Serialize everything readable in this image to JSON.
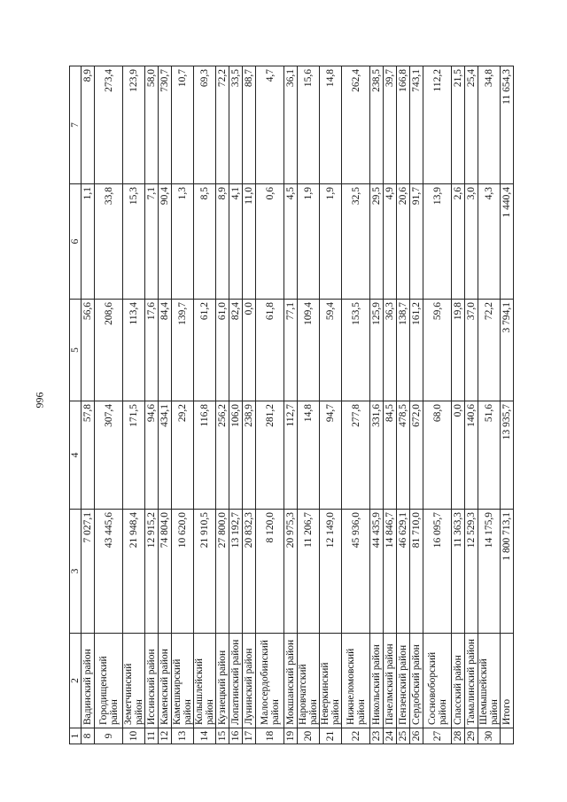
{
  "page_number": "996",
  "table": {
    "header": [
      "1",
      "2",
      "3",
      "4",
      "5",
      "6",
      "7"
    ],
    "rows": [
      [
        "8",
        "Вадинский район",
        "7 027,1",
        "57,8",
        "56,6",
        "1,1",
        "8,9"
      ],
      [
        "9",
        "Городищенский район",
        "43 445,6",
        "307,4",
        "208,6",
        "33,8",
        "273,4"
      ],
      [
        "10",
        "Земетчинский район",
        "21 948,4",
        "171,5",
        "113,4",
        "15,3",
        "123,9"
      ],
      [
        "11",
        "Иссинский район",
        "12 915,2",
        "94,6",
        "17,6",
        "7,1",
        "58,0"
      ],
      [
        "12",
        "Каменский район",
        "74 804,0",
        "434,1",
        "84,4",
        "90,4",
        "730,7"
      ],
      [
        "13",
        "Камешкирский район",
        "10 620,0",
        "29,2",
        "139,7",
        "1,3",
        "10,7"
      ],
      [
        "14",
        "Колышлейский район",
        "21 910,5",
        "116,8",
        "61,2",
        "8,5",
        "69,3"
      ],
      [
        "15",
        "Кузнецкий район",
        "27 800,0",
        "256,2",
        "61,0",
        "8,9",
        "72,2"
      ],
      [
        "16",
        "Лопатинский район",
        "13 192,7",
        "106,0",
        "82,4",
        "4,1",
        "33,5"
      ],
      [
        "17",
        "Лунинский район",
        "20 832,3",
        "238,9",
        "0,0",
        "11,0",
        "88,7"
      ],
      [
        "18",
        "Малосердобинский район",
        "8 120,0",
        "281,2",
        "61,8",
        "0,6",
        "4,7"
      ],
      [
        "19",
        "Мокшанский район",
        "20 975,3",
        "112,7",
        "77,1",
        "4,5",
        "36,1"
      ],
      [
        "20",
        "Наровчатский район",
        "11 206,7",
        "14,8",
        "109,4",
        "1,9",
        "15,6"
      ],
      [
        "21",
        "Неверкинский район",
        "12 149,0",
        "94,7",
        "59,4",
        "1,9",
        "14,8"
      ],
      [
        "22",
        "Нижнеломовский район",
        "45 936,0",
        "277,8",
        "153,5",
        "32,5",
        "262,4"
      ],
      [
        "23",
        "Никольский район",
        "44 435,9",
        "331,6",
        "125,9",
        "29,5",
        "238,5"
      ],
      [
        "24",
        "Пачелмский район",
        "14 846,7",
        "84,5",
        "36,3",
        "4,9",
        "39,7"
      ],
      [
        "25",
        "Пензенский район",
        "46 629,1",
        "478,5",
        "138,7",
        "20,6",
        "166,8"
      ],
      [
        "26",
        "Сердобский район",
        "81 710,0",
        "672,0",
        "161,2",
        "91,7",
        "743,1"
      ],
      [
        "27",
        "Сосновоборский район",
        "16 095,7",
        "68,0",
        "59,6",
        "13,9",
        "112,2"
      ],
      [
        "28",
        "Спасский район",
        "11 363,3",
        "0,0",
        "19,8",
        "2,6",
        "21,5"
      ],
      [
        "29",
        "Тамалинский район",
        "12 529,3",
        "140,6",
        "37,0",
        "3,0",
        "25,4"
      ],
      [
        "30",
        "Шемышейский район",
        "14 175,9",
        "51,6",
        "72,2",
        "4,3",
        "34,8"
      ],
      [
        "",
        "Итого",
        "1 800 713,1",
        "13 935,7",
        "3 794,1",
        "1 440,4",
        "11 654,3"
      ]
    ],
    "double_rows": [
      "9",
      "18",
      "22",
      "27"
    ]
  }
}
